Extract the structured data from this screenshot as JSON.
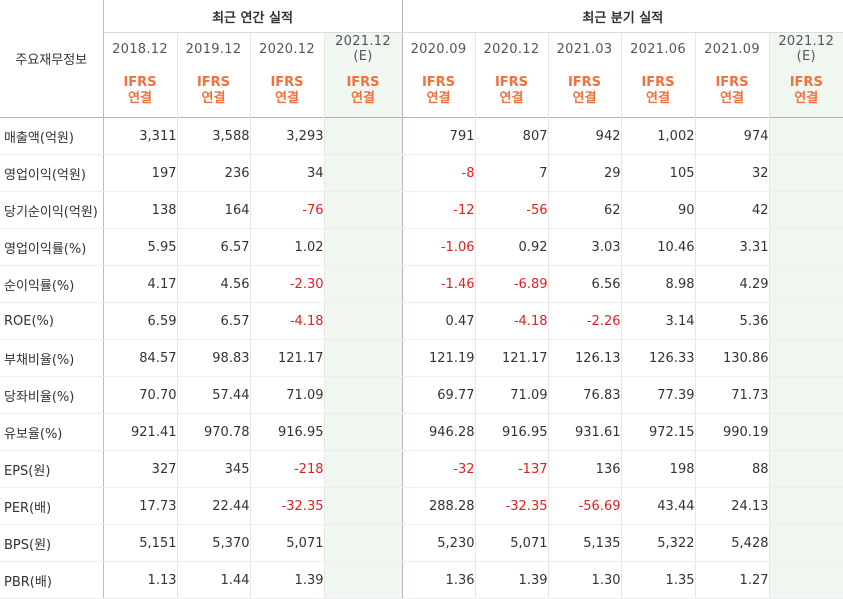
{
  "header": {
    "row_label": "주요재무정보",
    "annual_title": "최근 연간 실적",
    "quarter_title": "최근 분기 실적",
    "annual_periods": [
      "2018.12",
      "2019.12",
      "2020.12",
      "2021.12"
    ],
    "annual_est_suffix": "(E)",
    "quarter_periods": [
      "2020.09",
      "2020.12",
      "2021.03",
      "2021.06",
      "2021.09",
      "2021.12"
    ],
    "quarter_est_suffix": "(E)",
    "ifrs_label": "IFRS",
    "consolidated_label": "연결"
  },
  "rows": [
    {
      "label": "매출액(억원)",
      "annual": [
        "3,311",
        "3,588",
        "3,293",
        ""
      ],
      "quarter": [
        "791",
        "807",
        "942",
        "1,002",
        "974",
        ""
      ]
    },
    {
      "label": "영업이익(억원)",
      "annual": [
        "197",
        "236",
        "34",
        ""
      ],
      "quarter": [
        "-8",
        "7",
        "29",
        "105",
        "32",
        ""
      ]
    },
    {
      "label": "당기순이익(억원)",
      "annual": [
        "138",
        "164",
        "-76",
        ""
      ],
      "quarter": [
        "-12",
        "-56",
        "62",
        "90",
        "42",
        ""
      ]
    },
    {
      "label": "영업이익률(%)",
      "annual": [
        "5.95",
        "6.57",
        "1.02",
        ""
      ],
      "quarter": [
        "-1.06",
        "0.92",
        "3.03",
        "10.46",
        "3.31",
        ""
      ]
    },
    {
      "label": "순이익률(%)",
      "annual": [
        "4.17",
        "4.56",
        "-2.30",
        ""
      ],
      "quarter": [
        "-1.46",
        "-6.89",
        "6.56",
        "8.98",
        "4.29",
        ""
      ]
    },
    {
      "label": "ROE(%)",
      "annual": [
        "6.59",
        "6.57",
        "-4.18",
        ""
      ],
      "quarter": [
        "0.47",
        "-4.18",
        "-2.26",
        "3.14",
        "5.36",
        ""
      ]
    },
    {
      "label": "부채비율(%)",
      "annual": [
        "84.57",
        "98.83",
        "121.17",
        ""
      ],
      "quarter": [
        "121.19",
        "121.17",
        "126.13",
        "126.33",
        "130.86",
        ""
      ]
    },
    {
      "label": "당좌비율(%)",
      "annual": [
        "70.70",
        "57.44",
        "71.09",
        ""
      ],
      "quarter": [
        "69.77",
        "71.09",
        "76.83",
        "77.39",
        "71.73",
        ""
      ]
    },
    {
      "label": "유보율(%)",
      "annual": [
        "921.41",
        "970.78",
        "916.95",
        ""
      ],
      "quarter": [
        "946.28",
        "916.95",
        "931.61",
        "972.15",
        "990.19",
        ""
      ]
    },
    {
      "label": "EPS(원)",
      "annual": [
        "327",
        "345",
        "-218",
        ""
      ],
      "quarter": [
        "-32",
        "-137",
        "136",
        "198",
        "88",
        ""
      ]
    },
    {
      "label": "PER(배)",
      "annual": [
        "17.73",
        "22.44",
        "-32.35",
        ""
      ],
      "quarter": [
        "288.28",
        "-32.35",
        "-56.69",
        "43.44",
        "24.13",
        ""
      ]
    },
    {
      "label": "BPS(원)",
      "annual": [
        "5,151",
        "5,370",
        "5,071",
        ""
      ],
      "quarter": [
        "5,230",
        "5,071",
        "5,135",
        "5,322",
        "5,428",
        ""
      ]
    },
    {
      "label": "PBR(배)",
      "annual": [
        "1.13",
        "1.44",
        "1.39",
        ""
      ],
      "quarter": [
        "1.36",
        "1.39",
        "1.30",
        "1.35",
        "1.27",
        ""
      ]
    }
  ],
  "colors": {
    "negative": "#e02020",
    "ifrs_accent": "#f2703a",
    "estimate_bg": "#f0f7f0"
  }
}
